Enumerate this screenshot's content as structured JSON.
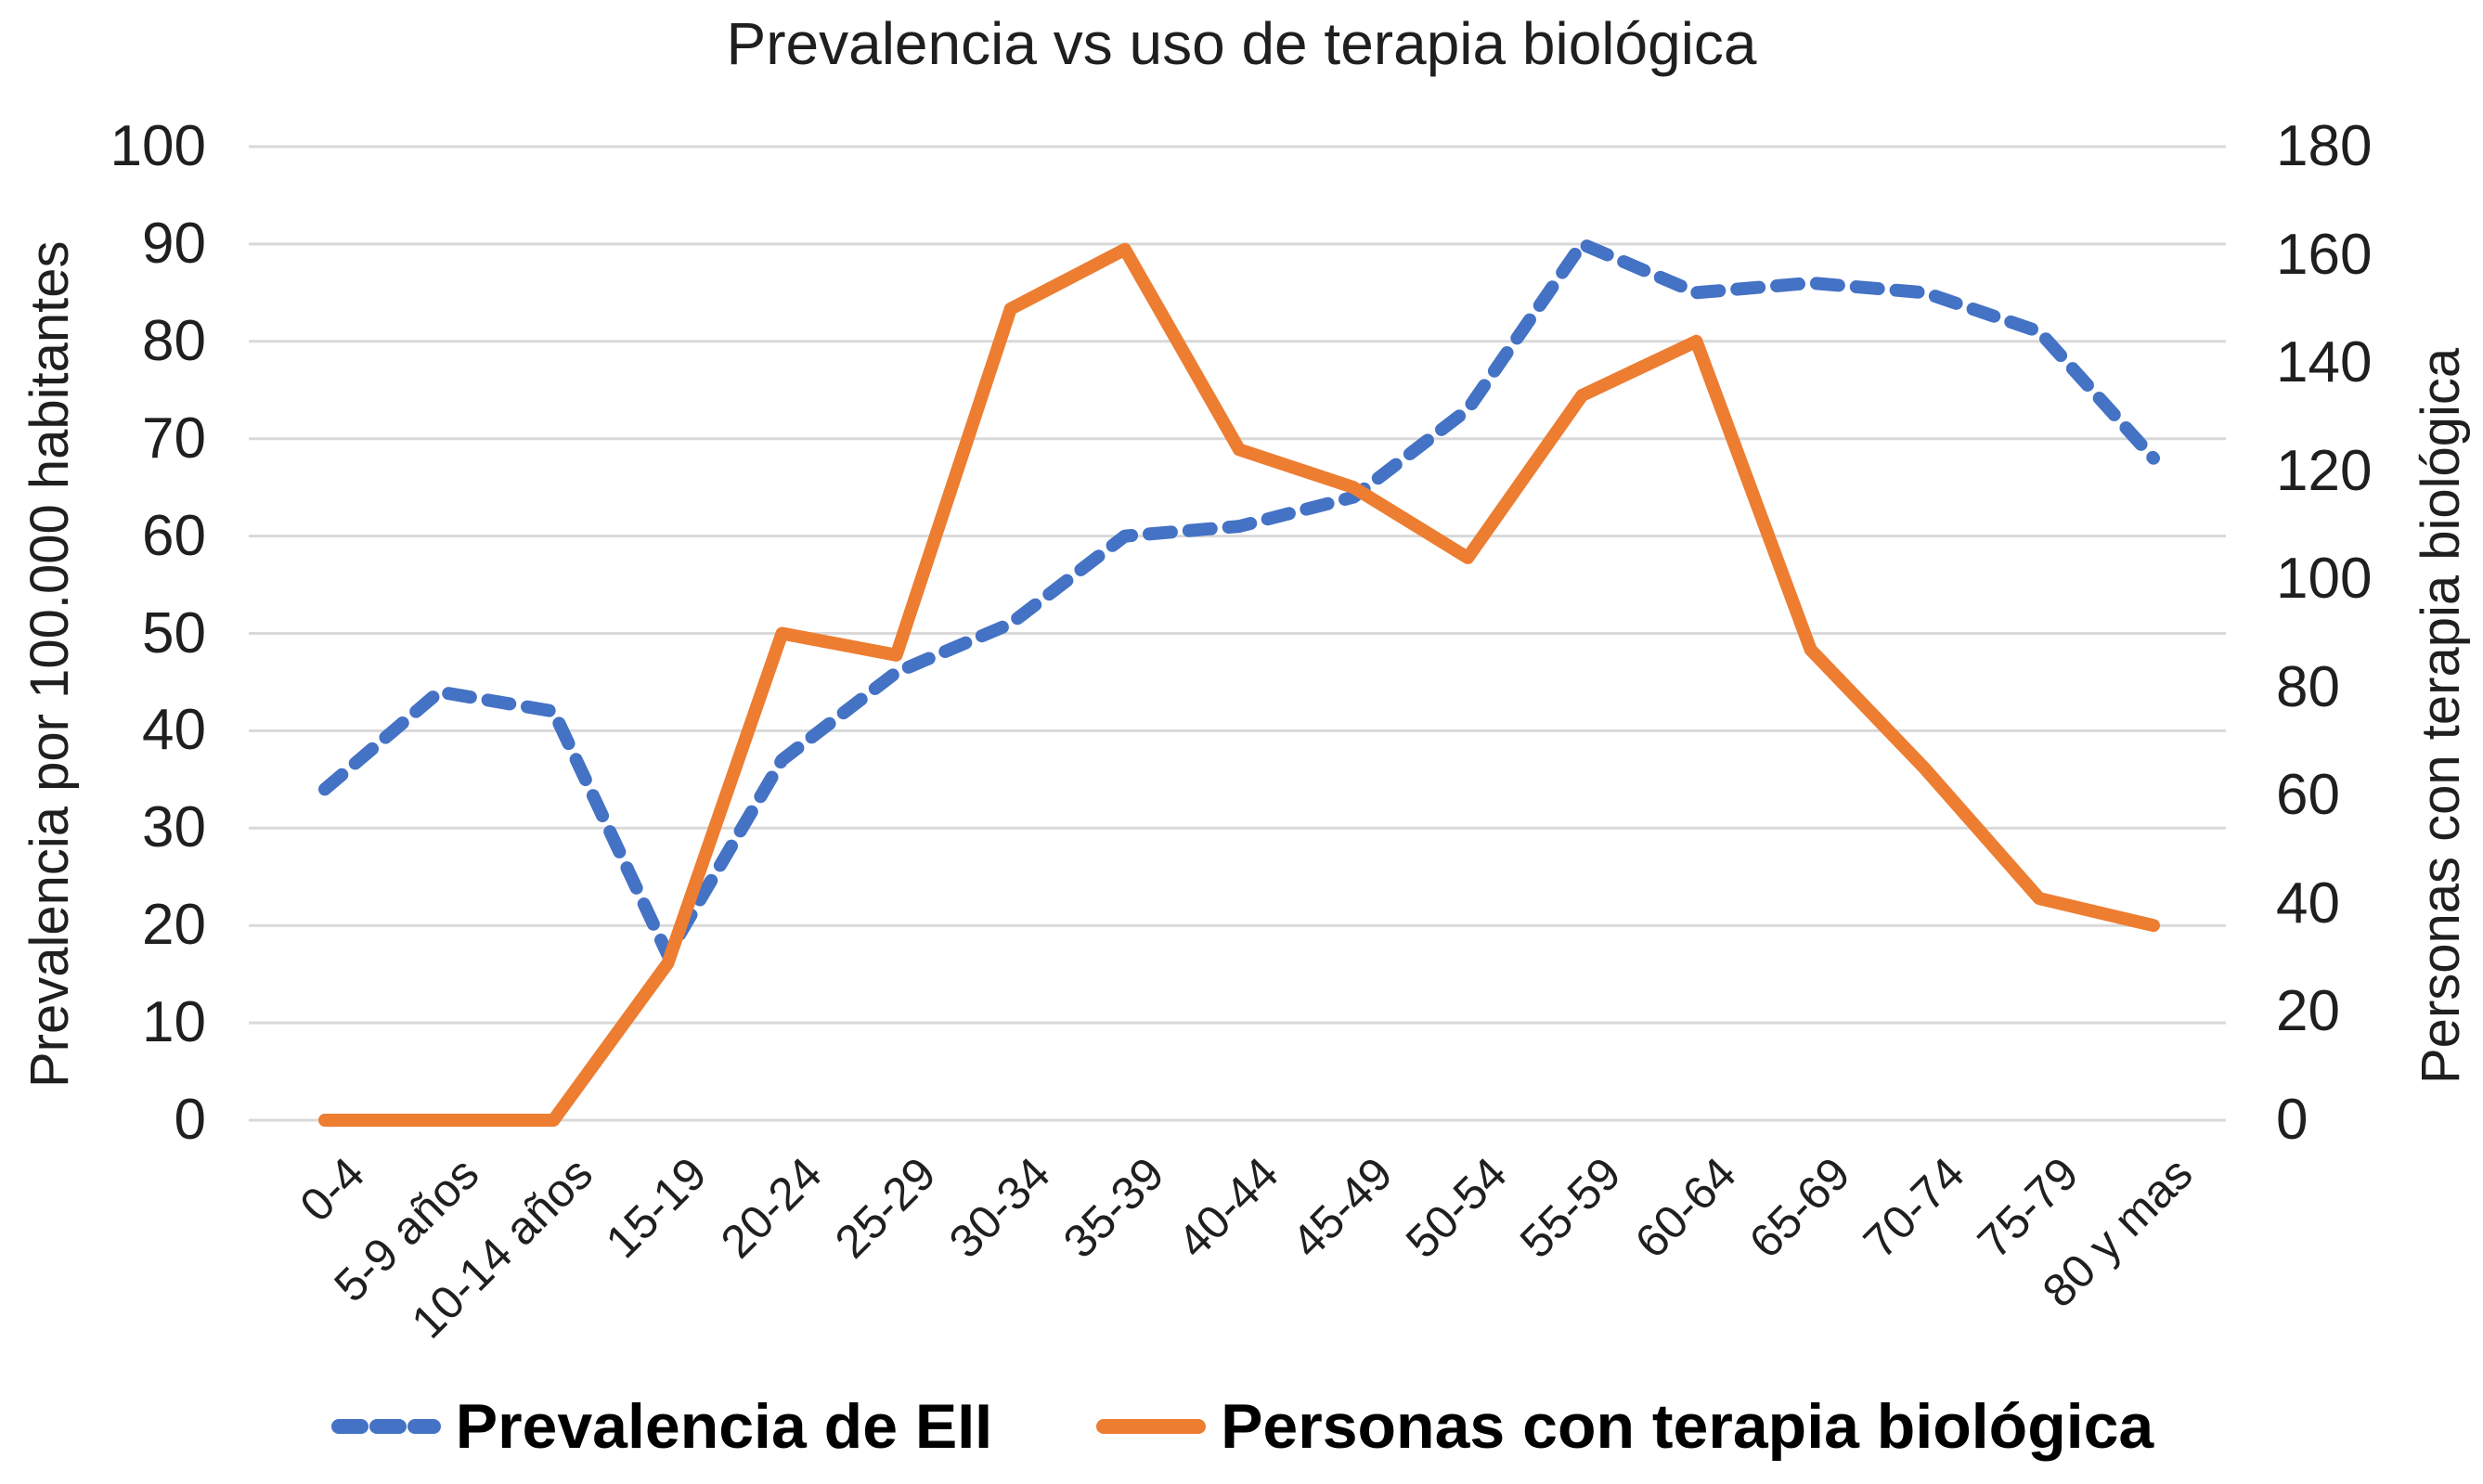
{
  "chart_data": {
    "type": "line",
    "title": "Prevalencia vs uso de terapia biológica",
    "categories": [
      "0-4",
      "5-9 años",
      "10-14 años",
      "15-19",
      "20-24",
      "25-29",
      "30-34",
      "35-39",
      "40-44",
      "45-49",
      "50-54",
      "55-59",
      "60-64",
      "65-69",
      "70-74",
      "75-79",
      "80 y mas"
    ],
    "series": [
      {
        "name": "Prevalencia de EII",
        "axis": "left",
        "color": "#4472C4",
        "line_style": "dashed",
        "values": [
          34,
          44,
          42,
          17,
          37,
          46,
          51,
          60,
          61,
          64,
          73,
          90,
          85,
          86,
          85,
          81,
          68
        ]
      },
      {
        "name": "Personas con terapia biológica",
        "axis": "right",
        "color": "#ED7D31",
        "line_style": "solid",
        "values": [
          0,
          0,
          0,
          29,
          90,
          86,
          150,
          161,
          124,
          117,
          104,
          134,
          144,
          87,
          65,
          41,
          36
        ]
      }
    ],
    "left_axis": {
      "label": "Prevalencia por 100.000 habitantes",
      "min": 0,
      "max": 100,
      "tick_step": 10,
      "tick_labels": [
        "0",
        "10",
        "20",
        "30",
        "40",
        "50",
        "60",
        "70",
        "80",
        "90",
        "100"
      ]
    },
    "right_axis": {
      "label": "Personas con terapia biológica",
      "min": 0,
      "max": 180,
      "tick_step": 20,
      "tick_labels": [
        "0",
        "20",
        "40",
        "60",
        "80",
        "100",
        "120",
        "140",
        "160",
        "180"
      ]
    },
    "grid": true,
    "gridline_color": "#D9D9D9",
    "text_color": "#1F1F1F",
    "legend_position": "bottom"
  }
}
